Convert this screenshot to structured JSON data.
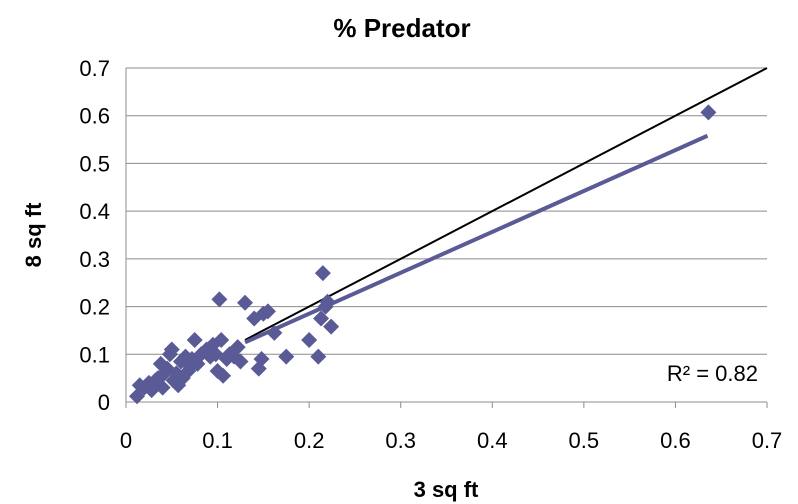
{
  "chart_data": {
    "type": "scatter",
    "title": "% Predator",
    "xlabel": "3 sq ft",
    "ylabel": "8 sq ft",
    "xlim": [
      0,
      0.7
    ],
    "ylim": [
      0,
      0.7
    ],
    "xticks": [
      "0",
      "0.1",
      "0.2",
      "0.3",
      "0.4",
      "0.5",
      "0.6",
      "0.7"
    ],
    "yticks": [
      "0",
      "0.1",
      "0.2",
      "0.3",
      "0.4",
      "0.5",
      "0.6",
      "0.7"
    ],
    "grid": "horizontal",
    "annotation": "R² = 0.82",
    "colors": {
      "points": "#5a5a96",
      "trendline": "#5a5a96",
      "reference": "#000000",
      "grid": "#8c8c8c"
    },
    "points": [
      [
        0.012,
        0.012
      ],
      [
        0.015,
        0.035
      ],
      [
        0.02,
        0.03
      ],
      [
        0.025,
        0.04
      ],
      [
        0.028,
        0.025
      ],
      [
        0.032,
        0.045
      ],
      [
        0.035,
        0.05
      ],
      [
        0.038,
        0.08
      ],
      [
        0.04,
        0.03
      ],
      [
        0.042,
        0.06
      ],
      [
        0.045,
        0.07
      ],
      [
        0.048,
        0.1
      ],
      [
        0.05,
        0.11
      ],
      [
        0.052,
        0.045
      ],
      [
        0.055,
        0.06
      ],
      [
        0.057,
        0.035
      ],
      [
        0.06,
        0.085
      ],
      [
        0.062,
        0.05
      ],
      [
        0.065,
        0.095
      ],
      [
        0.068,
        0.065
      ],
      [
        0.07,
        0.075
      ],
      [
        0.072,
        0.09
      ],
      [
        0.075,
        0.13
      ],
      [
        0.078,
        0.08
      ],
      [
        0.082,
        0.1
      ],
      [
        0.088,
        0.11
      ],
      [
        0.092,
        0.095
      ],
      [
        0.095,
        0.12
      ],
      [
        0.098,
        0.1
      ],
      [
        0.1,
        0.065
      ],
      [
        0.102,
        0.215
      ],
      [
        0.104,
        0.13
      ],
      [
        0.106,
        0.055
      ],
      [
        0.11,
        0.09
      ],
      [
        0.113,
        0.1
      ],
      [
        0.118,
        0.095
      ],
      [
        0.122,
        0.115
      ],
      [
        0.125,
        0.085
      ],
      [
        0.13,
        0.208
      ],
      [
        0.14,
        0.175
      ],
      [
        0.145,
        0.07
      ],
      [
        0.148,
        0.09
      ],
      [
        0.15,
        0.185
      ],
      [
        0.155,
        0.19
      ],
      [
        0.162,
        0.145
      ],
      [
        0.175,
        0.095
      ],
      [
        0.2,
        0.13
      ],
      [
        0.21,
        0.095
      ],
      [
        0.213,
        0.175
      ],
      [
        0.215,
        0.27
      ],
      [
        0.218,
        0.2
      ],
      [
        0.22,
        0.21
      ],
      [
        0.224,
        0.158
      ],
      [
        0.636,
        0.607
      ]
    ],
    "trendline": [
      [
        0.13,
        0.125
      ],
      [
        0.635,
        0.558
      ]
    ],
    "reference_line": [
      [
        0.13,
        0.13
      ],
      [
        0.7,
        0.7
      ]
    ]
  }
}
